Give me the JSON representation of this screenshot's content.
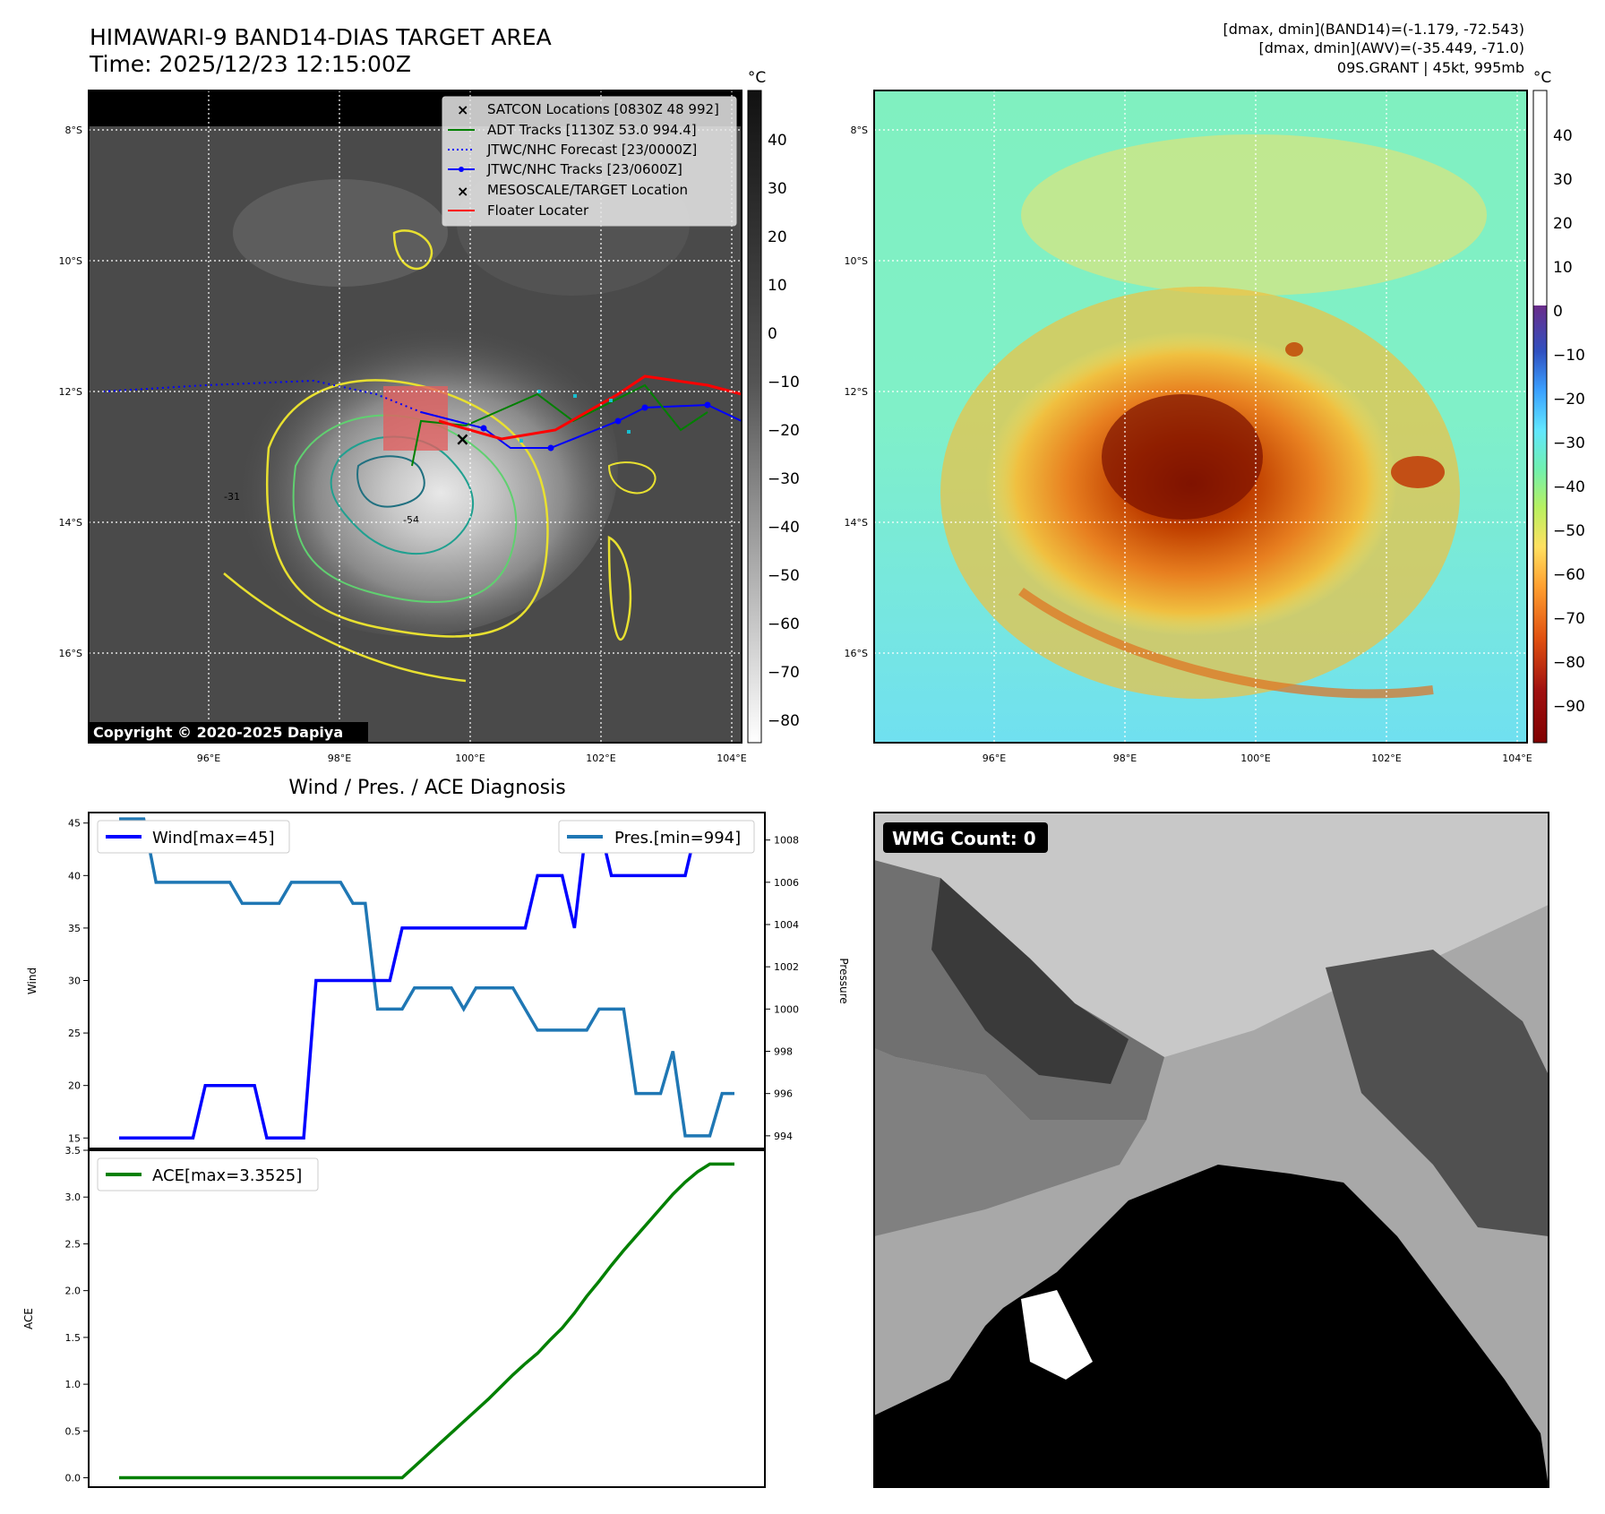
{
  "header": {
    "title_line1": "HIMAWARI-9 BAND14-DIAS TARGET AREA",
    "title_line2": "Time: 2025/12/23 12:15:00Z",
    "info_line1": "[dmax, dmin](BAND14)=(-1.179, -72.543)",
    "info_line2": "[dmax, dmin](AWV)=(-35.449, -71.0)",
    "info_line3": "09S.GRANT | 45kt, 995mb"
  },
  "map": {
    "lat_labels": [
      "8°S",
      "10°S",
      "12°S",
      "14°S",
      "16°S"
    ],
    "lon_labels": [
      "96°E",
      "98°E",
      "100°E",
      "102°E",
      "104°E"
    ],
    "colorbar_unit": "°C",
    "colorbar_left_ticks": [
      "40",
      "30",
      "20",
      "10",
      "0",
      "−10",
      "−20",
      "−30",
      "−40",
      "−50",
      "−60",
      "−70",
      "−80"
    ],
    "colorbar_right_ticks": [
      "40",
      "30",
      "20",
      "10",
      "0",
      "−10",
      "−20",
      "−30",
      "−40",
      "−50",
      "−60",
      "−70",
      "−80",
      "−90"
    ],
    "legend": [
      {
        "label": "SATCON Locations [0830Z 48 992]",
        "color": "#17becf",
        "marker": "x"
      },
      {
        "label": "ADT Tracks [1130Z 53.0 994.4]",
        "color": "#008000",
        "marker": "line"
      },
      {
        "label": "JTWC/NHC Forecast [23/0000Z]",
        "color": "#0000ff",
        "marker": "dotted"
      },
      {
        "label": "JTWC/NHC Tracks [23/0600Z]",
        "color": "#0000ff",
        "marker": "line-dot"
      },
      {
        "label": "MESOSCALE/TARGET Location",
        "color": "#ff0000",
        "marker": "x"
      },
      {
        "label": "Floater Locater",
        "color": "#ff0000",
        "marker": "line"
      }
    ],
    "copyright": "Copyright © 2020-2025 Dapiya",
    "contour_labels": [
      "-31",
      "-54"
    ],
    "wmg_label": "WMG Count: 0"
  },
  "chart_data": [
    {
      "type": "line",
      "title": "Wind / Pres. / ACE Diagnosis",
      "ylabel": "Wind",
      "ylabel2": "Pressure",
      "ylim": [
        14,
        46
      ],
      "ylim2": [
        993.4,
        1009.3
      ],
      "yticks": [
        15,
        20,
        25,
        30,
        35,
        40,
        45
      ],
      "yticks2": [
        994,
        996,
        998,
        1000,
        1002,
        1004,
        1006,
        1008
      ],
      "x": [
        0,
        1,
        2,
        3,
        4,
        5,
        6,
        7,
        8,
        9,
        10,
        11,
        12,
        13,
        14,
        15,
        16,
        17,
        18,
        19,
        20,
        21,
        22,
        23,
        24,
        25,
        26,
        27,
        28,
        29,
        30,
        31,
        32,
        33,
        34,
        35,
        36,
        37,
        38,
        39,
        40,
        41,
        42,
        43,
        44,
        45,
        46,
        47,
        48,
        49,
        50
      ],
      "series": [
        {
          "name": "Wind[max=45]",
          "color": "#0000ff",
          "axis": "left",
          "values": [
            15,
            15,
            15,
            15,
            15,
            15,
            15,
            20,
            20,
            20,
            20,
            20,
            15,
            15,
            15,
            15,
            30,
            30,
            30,
            30,
            30,
            30,
            30,
            35,
            35,
            35,
            35,
            35,
            35,
            35,
            35,
            35,
            35,
            35,
            40,
            40,
            40,
            35,
            45,
            45,
            40,
            40,
            40,
            40,
            40,
            40,
            40,
            45,
            45,
            45,
            45
          ]
        },
        {
          "name": "Pres.[min=994]",
          "color": "#1f77b4",
          "axis": "right",
          "values": [
            1009,
            1009,
            1009,
            1006,
            1006,
            1006,
            1006,
            1006,
            1006,
            1006,
            1005,
            1005,
            1005,
            1005,
            1006,
            1006,
            1006,
            1006,
            1006,
            1005,
            1005,
            1000,
            1000,
            1000,
            1001,
            1001,
            1001,
            1001,
            1000,
            1001,
            1001,
            1001,
            1001,
            1000,
            999,
            999,
            999,
            999,
            999,
            1000,
            1000,
            1000,
            996,
            996,
            996,
            998,
            994,
            994,
            994,
            996,
            996
          ]
        }
      ]
    },
    {
      "type": "line",
      "ylabel": "ACE",
      "ylim": [
        -0.1,
        3.5
      ],
      "yticks": [
        0.0,
        0.5,
        1.0,
        1.5,
        2.0,
        2.5,
        3.0,
        3.5
      ],
      "series": [
        {
          "name": "ACE[max=3.3525]",
          "color": "#008000",
          "values": [
            0,
            0,
            0,
            0,
            0,
            0,
            0,
            0,
            0,
            0,
            0,
            0,
            0,
            0,
            0,
            0,
            0,
            0,
            0,
            0,
            0,
            0,
            0,
            0,
            0.12,
            0.24,
            0.36,
            0.48,
            0.6,
            0.72,
            0.84,
            0.97,
            1.1,
            1.22,
            1.33,
            1.47,
            1.6,
            1.76,
            1.94,
            2.1,
            2.27,
            2.43,
            2.58,
            2.73,
            2.88,
            3.03,
            3.16,
            3.27,
            3.3525,
            3.3525,
            3.3525
          ]
        }
      ]
    }
  ]
}
